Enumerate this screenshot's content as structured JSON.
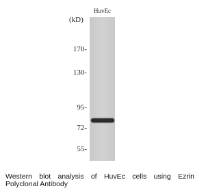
{
  "figure": {
    "lane_label": "HuvEc",
    "unit_label": "(kD)",
    "markers": [
      "170-",
      "130-",
      "95-",
      "72-",
      "55-"
    ],
    "caption_lines": [
      "Western blot analysis of HuvEc cells using Ezrin",
      "Polyclonal Antibody"
    ]
  }
}
